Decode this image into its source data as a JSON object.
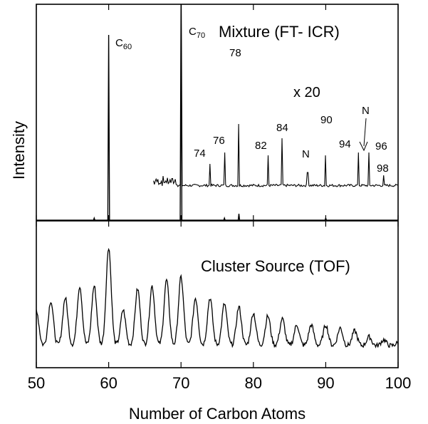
{
  "chart_data": {
    "type": "line",
    "xlabel": "Number of Carbon Atoms",
    "ylabel": "Intensity",
    "xlim": [
      50,
      100
    ],
    "x_ticks": [
      "50",
      "60",
      "70",
      "80",
      "90",
      "100"
    ],
    "panels": [
      {
        "name": "Mixture (FT- ICR)",
        "c70_prefix": "C",
        "c70_sub": "70",
        "scale_label": "x 20",
        "peaks": [
          {
            "x": 60,
            "y": 100,
            "label_main": "C",
            "label_sub": "60"
          },
          {
            "x": 70,
            "y": 128,
            "label_main": "",
            "label_sub": ""
          }
        ],
        "magnified_peaks": [
          {
            "x": 70,
            "y": 100,
            "label": ""
          },
          {
            "x": 74,
            "y": 8,
            "label": "74"
          },
          {
            "x": 76,
            "y": 12,
            "label": "76"
          },
          {
            "x": 78,
            "y": 22,
            "label": "78"
          },
          {
            "x": 82,
            "y": 11,
            "label": "82"
          },
          {
            "x": 84,
            "y": 17,
            "label": "84"
          },
          {
            "x": 87.5,
            "y": 5,
            "label": "N"
          },
          {
            "x": 90,
            "y": 11,
            "label": "90"
          },
          {
            "x": 94.5,
            "y": 12,
            "label": "94"
          },
          {
            "x": 96,
            "y": 12,
            "label": "96"
          },
          {
            "x": 98,
            "y": 4,
            "label": "98"
          }
        ],
        "n_arrow_label": "N"
      },
      {
        "name": "Cluster Source (TOF)",
        "peaks": [
          {
            "x": 50,
            "y": 12
          },
          {
            "x": 52,
            "y": 15
          },
          {
            "x": 54,
            "y": 16
          },
          {
            "x": 56,
            "y": 20
          },
          {
            "x": 58,
            "y": 20
          },
          {
            "x": 60,
            "y": 33
          },
          {
            "x": 62,
            "y": 12
          },
          {
            "x": 64,
            "y": 19
          },
          {
            "x": 66,
            "y": 20
          },
          {
            "x": 68,
            "y": 22
          },
          {
            "x": 70,
            "y": 23
          },
          {
            "x": 72,
            "y": 16
          },
          {
            "x": 74,
            "y": 16
          },
          {
            "x": 76,
            "y": 14
          },
          {
            "x": 78,
            "y": 13
          },
          {
            "x": 80,
            "y": 11
          },
          {
            "x": 82,
            "y": 10
          },
          {
            "x": 84,
            "y": 9
          },
          {
            "x": 86,
            "y": 7
          },
          {
            "x": 88,
            "y": 7
          },
          {
            "x": 90,
            "y": 7
          },
          {
            "x": 92,
            "y": 6
          },
          {
            "x": 94,
            "y": 5
          },
          {
            "x": 96,
            "y": 3
          },
          {
            "x": 98,
            "y": 2
          },
          {
            "x": 100,
            "y": 1
          }
        ]
      }
    ]
  }
}
